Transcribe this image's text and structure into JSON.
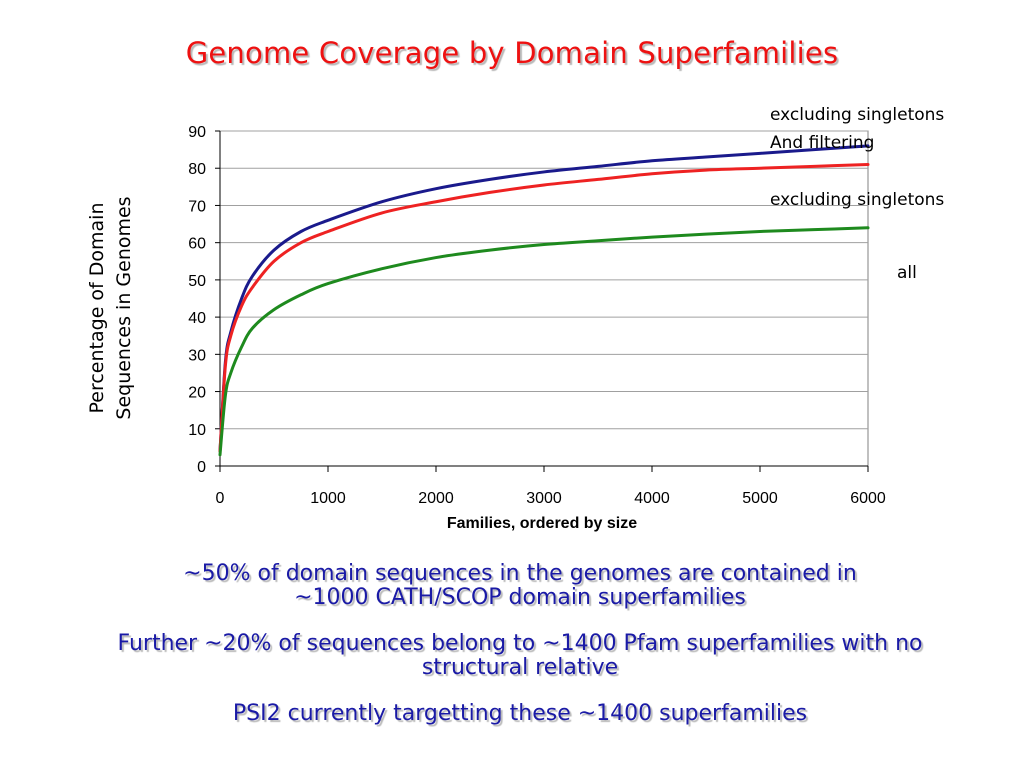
{
  "slide": {
    "title": "Genome Coverage by Domain Superfamilies"
  },
  "chart_data": {
    "type": "line",
    "xlabel": "Families, ordered by size",
    "ylabel_lines": [
      "Percentage of Domain",
      "Sequences in Genomes"
    ],
    "xlim": [
      0,
      6000
    ],
    "ylim": [
      0,
      90
    ],
    "xticks": [
      "0",
      "1000",
      "2000",
      "3000",
      "4000",
      "5000",
      "6000"
    ],
    "yticks": [
      "0",
      "10",
      "20",
      "30",
      "40",
      "50",
      "60",
      "70",
      "80",
      "90"
    ],
    "grid": "horizontal",
    "x": [
      0,
      50,
      100,
      200,
      300,
      500,
      750,
      1000,
      1500,
      2000,
      2500,
      3000,
      3500,
      4000,
      4500,
      5000,
      5500,
      6000
    ],
    "series": [
      {
        "name_lines": [
          "excluding singletons",
          "And filtering"
        ],
        "color": "#1a1a8c",
        "values": [
          4,
          28,
          36,
          45,
          51,
          58,
          63,
          66,
          71,
          74.5,
          77,
          79,
          80.5,
          82,
          83,
          84,
          85,
          86
        ]
      },
      {
        "name_lines": [
          "excluding singletons"
        ],
        "color": "#ee2222",
        "values": [
          4,
          27,
          35,
          43,
          48,
          55,
          60,
          63,
          68,
          71,
          73.5,
          75.5,
          77,
          78.5,
          79.5,
          80,
          80.5,
          81
        ]
      },
      {
        "name_lines": [
          "all"
        ],
        "color": "#1e8a1e",
        "values": [
          3,
          19,
          25,
          32,
          37,
          42,
          46,
          49,
          53,
          56,
          58,
          59.5,
          60.5,
          61.5,
          62.3,
          63,
          63.5,
          64
        ]
      }
    ]
  },
  "notes": [
    [
      "~50% of domain sequences in the genomes are contained in",
      "~1000 CATH/SCOP domain superfamilies"
    ],
    [
      "Further ~20% of sequences belong to ~1400 Pfam superfamilies with no",
      "structural relative"
    ],
    [
      "PSI2 currently targetting these ~1400 superfamilies"
    ]
  ]
}
